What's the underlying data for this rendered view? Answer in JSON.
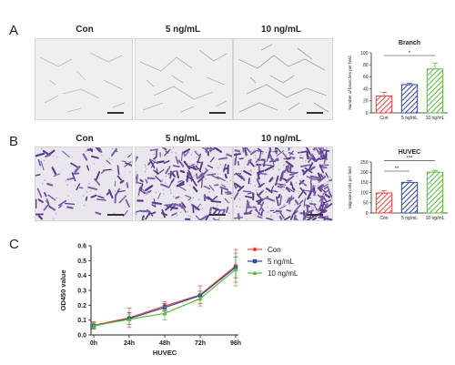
{
  "panels": {
    "a_letter": "A",
    "b_letter": "B",
    "c_letter": "C"
  },
  "columns": [
    "Con",
    "5 ng/mL",
    "10 ng/mL"
  ],
  "colors": {
    "con": "#e8423f",
    "ng5": "#2e4a9c",
    "ng10": "#5cb83d"
  },
  "chart_data": [
    {
      "type": "bar",
      "title": "Branch",
      "ylabel": "Number of branches per field",
      "categories": [
        "Con",
        "5 ng/mL",
        "10 ng/mL"
      ],
      "values": [
        28,
        47,
        73
      ],
      "errors": [
        6,
        2,
        10
      ],
      "ylim": [
        0,
        100
      ],
      "yticks": [
        0,
        20,
        40,
        60,
        80,
        100
      ],
      "significance": [
        {
          "from": 0,
          "to": 2,
          "label": "*"
        }
      ]
    },
    {
      "type": "bar",
      "title": "HUVEC",
      "ylabel": "Migrated cells per field",
      "categories": [
        "Con",
        "5 ng/mL",
        "10 ng/mL"
      ],
      "values": [
        98,
        150,
        200
      ],
      "errors": [
        12,
        8,
        8
      ],
      "ylim": [
        0,
        250
      ],
      "yticks": [
        0,
        50,
        100,
        150,
        200,
        250
      ],
      "significance": [
        {
          "from": 0,
          "to": 1,
          "label": "**"
        },
        {
          "from": 0,
          "to": 2,
          "label": "***"
        }
      ]
    },
    {
      "type": "line",
      "title": "",
      "xlabel": "HUVEC",
      "ylabel": "OD450 value",
      "categories": [
        "0h",
        "24h",
        "48h",
        "72h",
        "96h"
      ],
      "ylim": [
        0.0,
        0.6
      ],
      "yticks": [
        "0.0",
        "0.1",
        "0.2",
        "0.3",
        "0.4",
        "0.5",
        "0.6"
      ],
      "legend": "right",
      "series": [
        {
          "name": "Con",
          "values": [
            0.065,
            0.115,
            0.195,
            0.27,
            0.465
          ],
          "errors": [
            0.025,
            0.065,
            0.03,
            0.06,
            0.11
          ]
        },
        {
          "name": "5 ng/mL",
          "values": [
            0.06,
            0.11,
            0.185,
            0.265,
            0.455
          ],
          "errors": [
            0.02,
            0.04,
            0.025,
            0.03,
            0.07
          ]
        },
        {
          "name": "10 ng/mL",
          "values": [
            0.062,
            0.105,
            0.145,
            0.245,
            0.44
          ],
          "errors": [
            0.02,
            0.035,
            0.045,
            0.05,
            0.11
          ]
        }
      ]
    }
  ]
}
